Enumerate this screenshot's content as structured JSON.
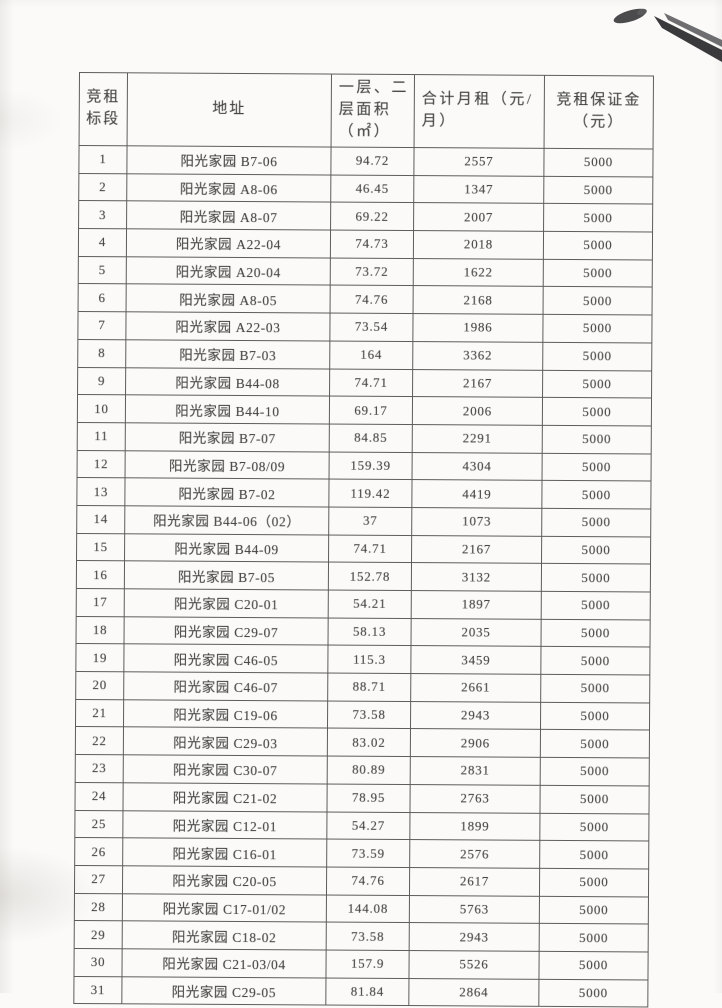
{
  "colors": {
    "paper": "#fbfaf8",
    "ink": "#454545",
    "table_border": "#5c5c5c",
    "pen_dark": "#3a3a3c",
    "pen_light": "#6e6e71"
  },
  "icons": {
    "pen_artifact": "pen-tip-object-in-scan-corner"
  },
  "table": {
    "column_keys": [
      "no",
      "address",
      "area",
      "rent",
      "deposit"
    ],
    "headers": {
      "no": "竞租\n标段",
      "address": "地址",
      "area": "一层、二\n层面积\n（㎡）",
      "rent": "合计月租（元/\n月）",
      "deposit": "竞租保证金\n（元）"
    },
    "rows": [
      {
        "no": "1",
        "address": "阳光家园 B7-06",
        "area": "94.72",
        "rent": "2557",
        "deposit": "5000"
      },
      {
        "no": "2",
        "address": "阳光家园 A8-06",
        "area": "46.45",
        "rent": "1347",
        "deposit": "5000"
      },
      {
        "no": "3",
        "address": "阳光家园 A8-07",
        "area": "69.22",
        "rent": "2007",
        "deposit": "5000"
      },
      {
        "no": "4",
        "address": "阳光家园 A22-04",
        "area": "74.73",
        "rent": "2018",
        "deposit": "5000"
      },
      {
        "no": "5",
        "address": "阳光家园 A20-04",
        "area": "73.72",
        "rent": "1622",
        "deposit": "5000"
      },
      {
        "no": "6",
        "address": "阳光家园 A8-05",
        "area": "74.76",
        "rent": "2168",
        "deposit": "5000"
      },
      {
        "no": "7",
        "address": "阳光家园 A22-03",
        "area": "73.54",
        "rent": "1986",
        "deposit": "5000"
      },
      {
        "no": "8",
        "address": "阳光家园 B7-03",
        "area": "164",
        "rent": "3362",
        "deposit": "5000"
      },
      {
        "no": "9",
        "address": "阳光家园 B44-08",
        "area": "74.71",
        "rent": "2167",
        "deposit": "5000"
      },
      {
        "no": "10",
        "address": "阳光家园 B44-10",
        "area": "69.17",
        "rent": "2006",
        "deposit": "5000"
      },
      {
        "no": "11",
        "address": "阳光家园 B7-07",
        "area": "84.85",
        "rent": "2291",
        "deposit": "5000"
      },
      {
        "no": "12",
        "address": "阳光家园 B7-08/09",
        "area": "159.39",
        "rent": "4304",
        "deposit": "5000"
      },
      {
        "no": "13",
        "address": "阳光家园 B7-02",
        "area": "119.42",
        "rent": "4419",
        "deposit": "5000"
      },
      {
        "no": "14",
        "address": "阳光家园 B44-06（02）",
        "area": "37",
        "rent": "1073",
        "deposit": "5000"
      },
      {
        "no": "15",
        "address": "阳光家园 B44-09",
        "area": "74.71",
        "rent": "2167",
        "deposit": "5000"
      },
      {
        "no": "16",
        "address": "阳光家园 B7-05",
        "area": "152.78",
        "rent": "3132",
        "deposit": "5000"
      },
      {
        "no": "17",
        "address": "阳光家园 C20-01",
        "area": "54.21",
        "rent": "1897",
        "deposit": "5000"
      },
      {
        "no": "18",
        "address": "阳光家园 C29-07",
        "area": "58.13",
        "rent": "2035",
        "deposit": "5000"
      },
      {
        "no": "19",
        "address": "阳光家园 C46-05",
        "area": "115.3",
        "rent": "3459",
        "deposit": "5000"
      },
      {
        "no": "20",
        "address": "阳光家园 C46-07",
        "area": "88.71",
        "rent": "2661",
        "deposit": "5000"
      },
      {
        "no": "21",
        "address": "阳光家园 C19-06",
        "area": "73.58",
        "rent": "2943",
        "deposit": "5000"
      },
      {
        "no": "22",
        "address": "阳光家园 C29-03",
        "area": "83.02",
        "rent": "2906",
        "deposit": "5000"
      },
      {
        "no": "23",
        "address": "阳光家园 C30-07",
        "area": "80.89",
        "rent": "2831",
        "deposit": "5000"
      },
      {
        "no": "24",
        "address": "阳光家园 C21-02",
        "area": "78.95",
        "rent": "2763",
        "deposit": "5000"
      },
      {
        "no": "25",
        "address": "阳光家园 C12-01",
        "area": "54.27",
        "rent": "1899",
        "deposit": "5000"
      },
      {
        "no": "26",
        "address": "阳光家园 C16-01",
        "area": "73.59",
        "rent": "2576",
        "deposit": "5000"
      },
      {
        "no": "27",
        "address": "阳光家园 C20-05",
        "area": "74.76",
        "rent": "2617",
        "deposit": "5000"
      },
      {
        "no": "28",
        "address": "阳光家园 C17-01/02",
        "area": "144.08",
        "rent": "5763",
        "deposit": "5000"
      },
      {
        "no": "29",
        "address": "阳光家园 C18-02",
        "area": "73.58",
        "rent": "2943",
        "deposit": "5000"
      },
      {
        "no": "30",
        "address": "阳光家园 C21-03/04",
        "area": "157.9",
        "rent": "5526",
        "deposit": "5000"
      },
      {
        "no": "31",
        "address": "阳光家园 C29-05",
        "area": "81.84",
        "rent": "2864",
        "deposit": "5000"
      }
    ]
  }
}
